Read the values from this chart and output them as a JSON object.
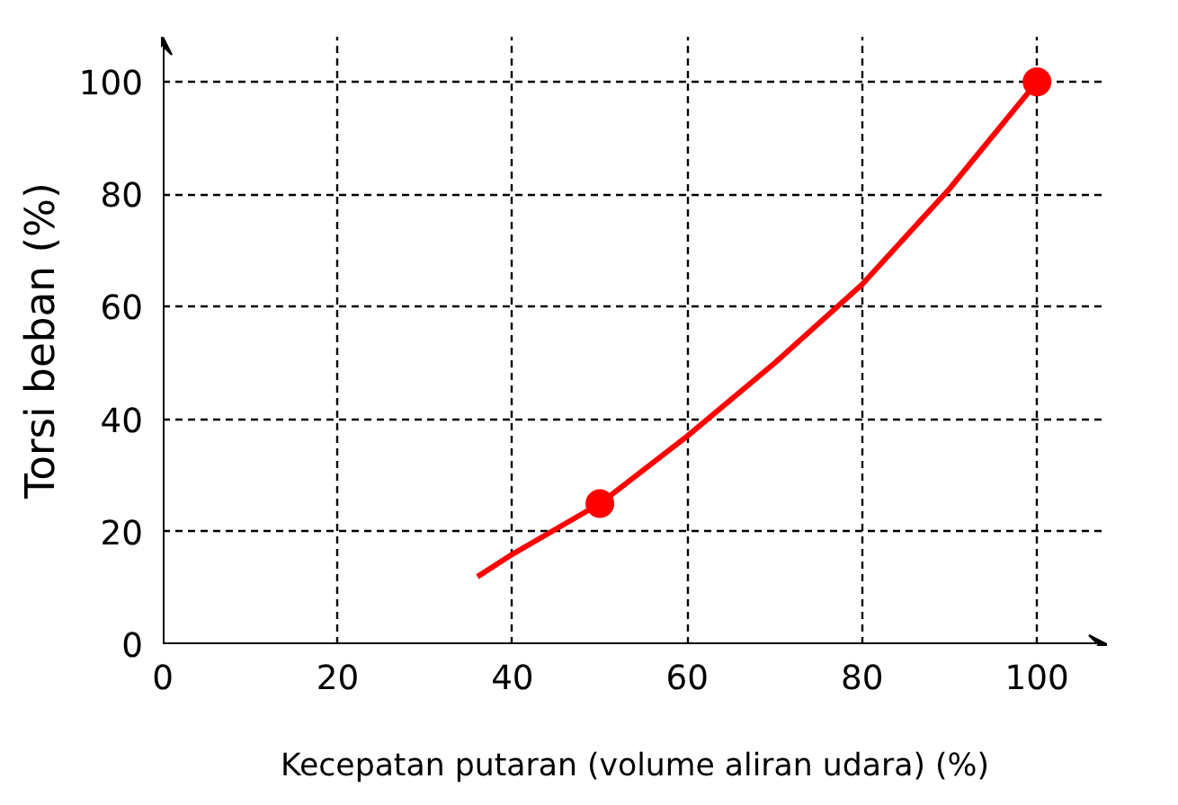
{
  "chart_data": {
    "type": "line",
    "xlabel": "Kecepatan putaran (volume aliran udara) (%)",
    "ylabel": "Torsi beban (%)",
    "xlim": [
      0,
      108
    ],
    "ylim": [
      0,
      108
    ],
    "xticks": [
      0,
      20,
      40,
      60,
      80,
      100
    ],
    "yticks": [
      0,
      20,
      40,
      60,
      80,
      100
    ],
    "grid": true,
    "series": [
      {
        "type": "line",
        "color": "#ff0000",
        "x": [
          36,
          40,
          50,
          60,
          70,
          80,
          90,
          100
        ],
        "values": [
          12,
          16,
          25,
          37,
          50,
          64,
          81,
          100
        ],
        "marker": "none"
      },
      {
        "type": "scatter",
        "color": "#ff0000",
        "x": [
          50,
          100
        ],
        "values": [
          25,
          100
        ],
        "marker": "circle"
      }
    ]
  }
}
